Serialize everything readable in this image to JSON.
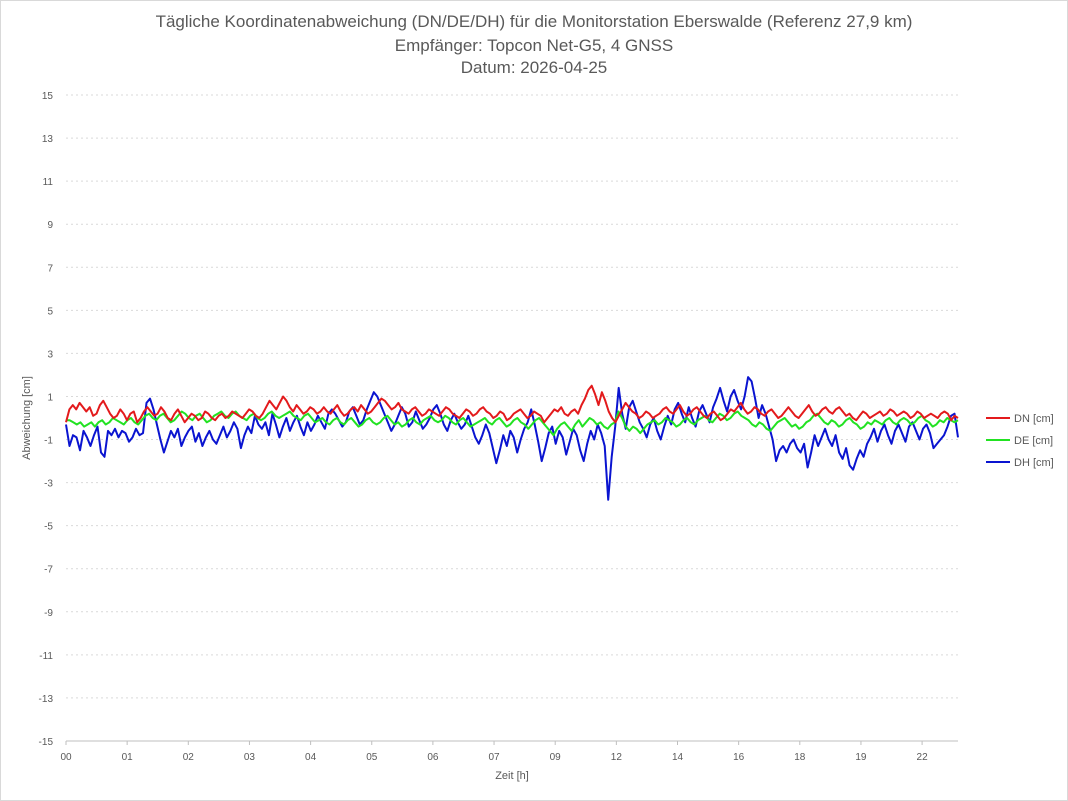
{
  "chart_data": {
    "type": "line",
    "title": "Tägliche Koordinatenabweichung (DN/DE/DH) für die Monitorstation Eberswalde (Referenz 27,9 km)",
    "subtitle": "Empfänger: Topcon Net-G5, 4 GNSS",
    "subtitle2": "Datum: 2026-04-25",
    "xlabel": "Zeit [h]",
    "ylabel": "Abweichung [cm]",
    "ylim": [
      -15,
      15
    ],
    "yticks": [
      15,
      13,
      11,
      9,
      7,
      5,
      3,
      1,
      -1,
      -3,
      -5,
      -7,
      -9,
      -11,
      -13,
      -15
    ],
    "x_tick_labels": [
      "00",
      "01",
      "02",
      "03",
      "04",
      "05",
      "06",
      "07",
      "09",
      "12",
      "14",
      "16",
      "18",
      "19",
      "22"
    ],
    "grid": true,
    "legend_position": "right",
    "series": [
      {
        "name": "DN [cm]",
        "color": "#e31a1c",
        "values": [
          -0.2,
          0.4,
          0.6,
          0.4,
          0.7,
          0.5,
          0.3,
          0.5,
          0.1,
          0.2,
          0.6,
          0.8,
          0.5,
          0.2,
          0.0,
          0.1,
          0.4,
          0.2,
          -0.1,
          0.2,
          0.3,
          -0.2,
          0.0,
          0.3,
          0.5,
          0.3,
          0.1,
          0.2,
          0.5,
          0.3,
          0.0,
          -0.1,
          0.2,
          0.4,
          0.1,
          -0.2,
          0.0,
          0.2,
          0.1,
          -0.1,
          0.0,
          0.3,
          0.2,
          0.0,
          -0.1,
          0.1,
          0.2,
          0.0,
          0.1,
          0.3,
          0.2,
          0.1,
          0.0,
          0.2,
          0.4,
          0.3,
          0.1,
          0.0,
          0.2,
          0.5,
          0.8,
          0.6,
          0.4,
          0.7,
          1.0,
          0.8,
          0.5,
          0.3,
          0.6,
          0.4,
          0.2,
          0.3,
          0.5,
          0.4,
          0.2,
          0.3,
          0.5,
          0.3,
          0.2,
          0.4,
          0.6,
          0.3,
          0.1,
          0.2,
          0.4,
          0.5,
          0.3,
          0.6,
          0.4,
          0.2,
          0.3,
          0.5,
          0.7,
          0.9,
          0.8,
          0.6,
          0.4,
          0.5,
          0.7,
          0.4,
          0.3,
          0.2,
          0.4,
          0.5,
          0.3,
          0.1,
          0.2,
          0.4,
          0.3,
          0.2,
          0.1,
          0.3,
          0.5,
          0.4,
          0.2,
          0.1,
          0.0,
          0.2,
          0.4,
          0.3,
          0.1,
          0.2,
          0.4,
          0.5,
          0.3,
          0.2,
          0.0,
          0.1,
          0.3,
          0.2,
          -0.1,
          0.0,
          0.2,
          0.3,
          0.4,
          0.2,
          0.0,
          0.1,
          0.3,
          0.2,
          0.1,
          -0.2,
          0.0,
          0.2,
          0.4,
          0.3,
          0.5,
          0.2,
          0.1,
          0.3,
          0.4,
          0.2,
          0.6,
          0.9,
          1.3,
          1.5,
          1.1,
          0.6,
          1.2,
          0.8,
          0.3,
          0.0,
          -0.2,
          0.1,
          0.4,
          0.7,
          0.5,
          0.3,
          0.2,
          0.0,
          0.1,
          0.3,
          0.2,
          0.0,
          0.1,
          0.2,
          0.4,
          0.5,
          0.3,
          0.2,
          0.4,
          0.6,
          0.3,
          0.1,
          0.2,
          0.4,
          0.5,
          0.3,
          0.1,
          0.0,
          0.2,
          0.3,
          0.1,
          -0.1,
          0.0,
          0.2,
          0.4,
          0.3,
          0.5,
          0.7,
          0.4,
          0.2,
          0.3,
          0.5,
          0.4,
          0.2,
          0.1,
          0.3,
          0.4,
          0.2,
          0.0,
          0.1,
          0.3,
          0.5,
          0.3,
          0.1,
          0.0,
          0.2,
          0.4,
          0.6,
          0.3,
          0.1,
          0.2,
          0.4,
          0.5,
          0.3,
          0.2,
          0.4,
          0.5,
          0.3,
          0.1,
          0.2,
          0.0,
          -0.1,
          0.1,
          0.3,
          0.2,
          0.0,
          0.1,
          0.2,
          0.3,
          0.1,
          0.2,
          0.4,
          0.3,
          0.1,
          0.2,
          0.3,
          0.2,
          0.0,
          0.1,
          0.3,
          0.2,
          0.0,
          0.1,
          0.2,
          0.1,
          0.0,
          0.2,
          0.3,
          0.2,
          -0.1,
          0.1,
          0.0
        ],
        "endpoints": [
          [
            0,
            0.0
          ],
          [
            0.5,
            0.8
          ],
          [
            1,
            0.3
          ],
          [
            2,
            0.2
          ],
          [
            3,
            0.5
          ],
          [
            4,
            1.0
          ],
          [
            5,
            0.6
          ],
          [
            6,
            0.6
          ],
          [
            7,
            0.5
          ],
          [
            8,
            0.5
          ],
          [
            9,
            0.7
          ],
          [
            10,
            1.5
          ],
          [
            11,
            0.6
          ],
          [
            12,
            0.8
          ],
          [
            13,
            0.9
          ],
          [
            14,
            0.6
          ],
          [
            15,
            0.5
          ],
          [
            16,
            0.5
          ],
          [
            17,
            0.6
          ],
          [
            18,
            0.7
          ],
          [
            19,
            0.5
          ],
          [
            20,
            0.3
          ],
          [
            21,
            0.2
          ],
          [
            22,
            0.1
          ]
        ]
      },
      {
        "name": "DE [cm]",
        "color": "#22e222",
        "values": [
          -0.1,
          -0.1,
          -0.2,
          -0.3,
          -0.2,
          -0.4,
          -0.3,
          -0.2,
          -0.4,
          -0.2,
          -0.1,
          -0.3,
          -0.2,
          0.0,
          -0.1,
          -0.2,
          -0.3,
          -0.1,
          0.0,
          -0.2,
          -0.3,
          -0.1,
          0.1,
          0.2,
          0.0,
          -0.1,
          0.1,
          0.2,
          0.0,
          -0.2,
          -0.1,
          0.1,
          0.3,
          0.2,
          0.0,
          -0.1,
          0.1,
          0.2,
          0.0,
          -0.2,
          -0.1,
          0.1,
          0.2,
          0.3,
          0.1,
          0.0,
          0.2,
          0.3,
          0.1,
          0.0,
          -0.1,
          0.1,
          0.2,
          0.0,
          -0.1,
          0.0,
          0.2,
          0.3,
          0.1,
          0.0,
          0.1,
          0.2,
          0.3,
          0.1,
          0.0,
          -0.1,
          0.1,
          0.2,
          0.0,
          -0.2,
          -0.1,
          0.0,
          -0.2,
          -0.3,
          -0.1,
          0.0,
          -0.2,
          -0.3,
          -0.1,
          0.0,
          -0.2,
          -0.4,
          -0.3,
          -0.1,
          0.0,
          -0.2,
          -0.3,
          -0.2,
          0.0,
          0.1,
          -0.1,
          -0.3,
          -0.2,
          -0.4,
          -0.3,
          -0.1,
          0.0,
          -0.2,
          -0.3,
          -0.1,
          0.0,
          0.1,
          -0.1,
          -0.2,
          -0.1,
          0.1,
          0.0,
          -0.2,
          -0.3,
          -0.1,
          0.0,
          -0.2,
          -0.4,
          -0.3,
          -0.2,
          -0.1,
          0.0,
          -0.2,
          -0.3,
          -0.1,
          0.0,
          -0.2,
          -0.4,
          -0.3,
          -0.1,
          0.0,
          -0.2,
          -0.3,
          -0.5,
          -0.3,
          -0.1,
          0.0,
          -0.2,
          -0.4,
          -0.6,
          -0.8,
          -0.5,
          -0.3,
          -0.2,
          -0.4,
          -0.6,
          -0.3,
          -0.1,
          -0.4,
          -0.2,
          0.0,
          -0.1,
          -0.3,
          -0.2,
          -0.4,
          -0.5,
          -0.3,
          -0.2,
          0.3,
          0.0,
          -0.4,
          -0.6,
          -0.4,
          -0.5,
          -0.7,
          -0.5,
          -0.3,
          -0.2,
          -0.1,
          -0.3,
          -0.2,
          0.0,
          -0.1,
          -0.2,
          -0.4,
          -0.3,
          -0.1,
          0.0,
          -0.2,
          -0.3,
          -0.1,
          0.0,
          0.1,
          -0.1,
          -0.2,
          0.0,
          0.2,
          0.1,
          -0.1,
          0.0,
          0.2,
          0.3,
          0.1,
          0.0,
          -0.1,
          -0.3,
          -0.4,
          -0.2,
          -0.3,
          -0.5,
          -0.6,
          -0.4,
          -0.2,
          -0.1,
          0.0,
          -0.2,
          -0.4,
          -0.3,
          -0.5,
          -0.4,
          -0.2,
          -0.1,
          0.1,
          0.2,
          0.0,
          -0.2,
          -0.3,
          -0.1,
          -0.2,
          -0.4,
          -0.3,
          -0.1,
          0.0,
          -0.2,
          -0.3,
          -0.5,
          -0.4,
          -0.2,
          -0.3,
          -0.1,
          -0.2,
          -0.3,
          -0.1,
          0.0,
          -0.2,
          -0.3,
          -0.1,
          0.0,
          -0.1,
          -0.3,
          -0.2,
          0.0,
          0.1,
          -0.1,
          -0.2,
          -0.4,
          -0.3,
          -0.1,
          -0.2,
          0.0,
          -0.1,
          -0.2,
          -0.1
        ]
      },
      {
        "name": "DH [cm]",
        "color": "#0a14d0",
        "values": [
          -0.3,
          -1.3,
          -0.8,
          -0.9,
          -1.5,
          -0.6,
          -0.9,
          -1.3,
          -0.8,
          -0.4,
          -1.6,
          -1.8,
          -0.6,
          -0.8,
          -0.5,
          -0.9,
          -0.6,
          -0.7,
          -1.1,
          -0.9,
          -0.5,
          -0.8,
          -0.7,
          0.7,
          0.9,
          0.4,
          -0.3,
          -1.0,
          -1.6,
          -1.1,
          -0.6,
          -0.9,
          -0.5,
          -1.3,
          -0.9,
          -0.6,
          -0.4,
          -1.1,
          -0.7,
          -1.3,
          -0.9,
          -0.6,
          -1.0,
          -1.2,
          -0.8,
          -0.4,
          -0.9,
          -0.6,
          -0.2,
          -0.5,
          -1.4,
          -0.8,
          -0.4,
          -0.7,
          0.1,
          -0.3,
          -0.5,
          -0.2,
          -0.8,
          0.2,
          -0.3,
          -0.9,
          -0.4,
          0.0,
          -0.6,
          -0.2,
          0.1,
          -0.4,
          -0.8,
          -0.2,
          -0.6,
          -0.3,
          0.1,
          -0.2,
          -0.5,
          0.2,
          0.4,
          0.2,
          -0.1,
          -0.4,
          -0.2,
          0.3,
          0.5,
          0.1,
          -0.3,
          -0.1,
          0.4,
          0.8,
          1.2,
          1.0,
          0.6,
          0.2,
          -0.2,
          -0.6,
          -0.3,
          0.1,
          0.5,
          0.2,
          -0.4,
          -0.2,
          0.3,
          -0.1,
          -0.5,
          -0.3,
          0.0,
          0.4,
          0.6,
          0.2,
          -0.3,
          -0.6,
          -0.1,
          0.2,
          -0.2,
          -0.5,
          -0.3,
          0.1,
          -0.4,
          -0.9,
          -1.2,
          -0.8,
          -0.3,
          -0.7,
          -1.4,
          -2.1,
          -1.5,
          -0.8,
          -1.3,
          -0.6,
          -0.9,
          -1.6,
          -1.0,
          -0.5,
          -0.2,
          0.4,
          -0.3,
          -1.1,
          -2.0,
          -1.4,
          -0.7,
          -0.4,
          -1.2,
          -0.6,
          -0.9,
          -1.7,
          -1.1,
          -0.5,
          -0.8,
          -1.5,
          -2.0,
          -1.2,
          -0.6,
          -1.0,
          -0.3,
          -0.7,
          -1.3,
          -3.8,
          -1.8,
          -0.4,
          1.4,
          0.2,
          -0.5,
          0.5,
          0.8,
          0.3,
          -0.2,
          -0.5,
          -0.9,
          -0.3,
          0.0,
          -0.6,
          -1.0,
          -0.4,
          0.1,
          -0.3,
          0.4,
          0.7,
          0.2,
          -0.2,
          0.5,
          0.0,
          -0.4,
          0.3,
          0.6,
          0.2,
          -0.2,
          0.5,
          0.9,
          1.4,
          0.8,
          0.3,
          1.0,
          1.3,
          0.8,
          0.4,
          1.0,
          1.9,
          1.7,
          0.9,
          0.0,
          0.6,
          0.2,
          -0.4,
          -1.0,
          -2.0,
          -1.5,
          -1.3,
          -1.6,
          -1.2,
          -1.0,
          -1.4,
          -1.6,
          -1.2,
          -2.3,
          -1.6,
          -0.8,
          -1.3,
          -0.9,
          -0.5,
          -1.0,
          -1.3,
          -0.8,
          -1.6,
          -1.9,
          -1.4,
          -2.2,
          -2.4,
          -1.9,
          -1.5,
          -1.8,
          -1.2,
          -0.9,
          -0.5,
          -1.1,
          -0.6,
          -0.3,
          -0.8,
          -1.2,
          -0.6,
          -0.3,
          -0.7,
          -1.1,
          -0.4,
          -0.2,
          -0.6,
          -1.0,
          -0.5,
          -0.3,
          -0.7,
          -1.4,
          -1.2,
          -1.0,
          -0.8,
          -0.4,
          0.1,
          0.2,
          -0.9
        ]
      }
    ]
  }
}
